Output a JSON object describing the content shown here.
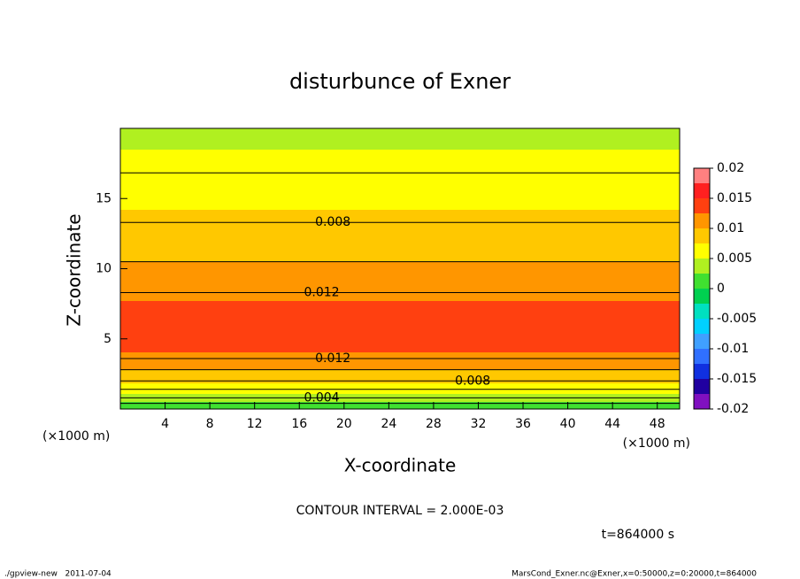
{
  "chart_data": {
    "type": "contour",
    "title": "disturbunce of Exner",
    "xlabel": "X-coordinate",
    "ylabel": "Z-coordinate",
    "x_unit_label": "(×1000 m)",
    "xlim": [
      0,
      50
    ],
    "ylim": [
      0,
      20
    ],
    "xticks": [
      4,
      8,
      12,
      16,
      20,
      24,
      28,
      32,
      36,
      40,
      44,
      48
    ],
    "yticks": [
      5,
      10,
      15
    ],
    "profile": {
      "z": [
        0,
        0.8,
        2.0,
        3.6,
        5,
        6.5,
        8.3,
        10.5,
        13.3,
        16,
        18.5,
        20
      ],
      "values": [
        0.0,
        0.004,
        0.008,
        0.012,
        0.0135,
        0.0135,
        0.012,
        0.01,
        0.008,
        0.0065,
        0.005,
        0.004
      ]
    },
    "contour_interval": 0.002,
    "contour_interval_label": "CONTOUR INTERVAL = 2.000E-03",
    "contour_labels": [
      {
        "label": "0.008",
        "x": 19,
        "z": 13.3
      },
      {
        "label": "0.012",
        "x": 18,
        "z": 8.3
      },
      {
        "label": "0.012",
        "x": 19,
        "z": 3.6
      },
      {
        "label": "0.008",
        "x": 31.5,
        "z": 2.0
      },
      {
        "label": "0.004",
        "x": 18,
        "z": 0.8
      }
    ],
    "clim": [
      -0.02,
      0.02
    ],
    "cticks": [
      0.02,
      0.015,
      0.01,
      0.005,
      0,
      -0.005,
      -0.01,
      -0.015,
      -0.02
    ],
    "colors": [
      "#8010c0",
      "#2000a0",
      "#1030e0",
      "#3070ff",
      "#40a0ff",
      "#00d0ff",
      "#00e0c0",
      "#00d050",
      "#40e030",
      "#b0f020",
      "#ffff00",
      "#ffc800",
      "#ff9600",
      "#ff4010",
      "#ff2020",
      "#ff8080"
    ],
    "time_label": "t=864000 s",
    "footer_left": "./gpview-new   2011-07-04",
    "footer_right": "MarsCond_Exner.nc@Exner,x=0:50000,z=0:20000,t=864000"
  }
}
